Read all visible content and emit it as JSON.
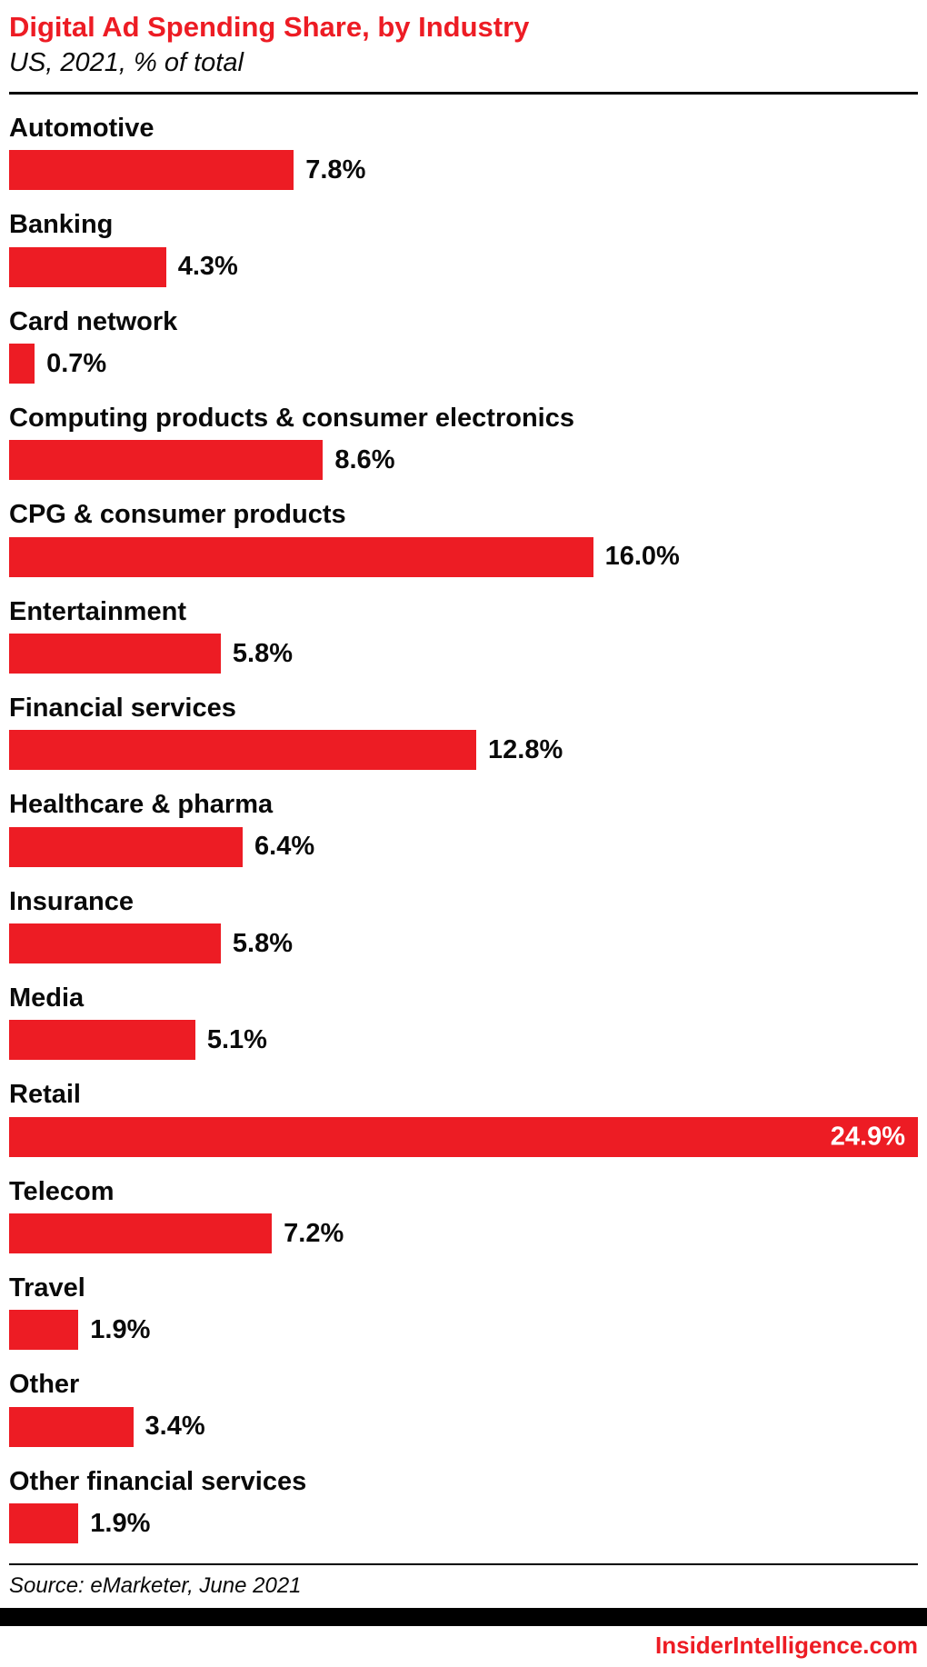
{
  "chart_data": {
    "type": "bar",
    "orientation": "horizontal",
    "title": "Digital Ad Spending Share, by Industry",
    "subtitle": "US, 2021, % of total",
    "unit": "%",
    "xlim": [
      0,
      24.9
    ],
    "grid": false,
    "legend": "none",
    "categories": [
      "Automotive",
      "Banking",
      "Card network",
      "Computing products & consumer electronics",
      "CPG & consumer products",
      "Entertainment",
      "Financial services",
      "Healthcare & pharma",
      "Insurance",
      "Media",
      "Retail",
      "Telecom",
      "Travel",
      "Other",
      "Other financial services"
    ],
    "values": [
      7.8,
      4.3,
      0.7,
      8.6,
      16.0,
      5.8,
      12.8,
      6.4,
      5.8,
      5.1,
      24.9,
      7.2,
      1.9,
      3.4,
      1.9
    ],
    "max_value_label_inside": true
  },
  "footer": {
    "source": "Source: eMarketer, June 2021",
    "brand": "InsiderIntelligence.com"
  },
  "colors": {
    "accent": "#ed1c24",
    "bar": "#ed1c24",
    "text": "#0a0a0a",
    "rule": "#000000",
    "inside_label": "#ffffff"
  }
}
